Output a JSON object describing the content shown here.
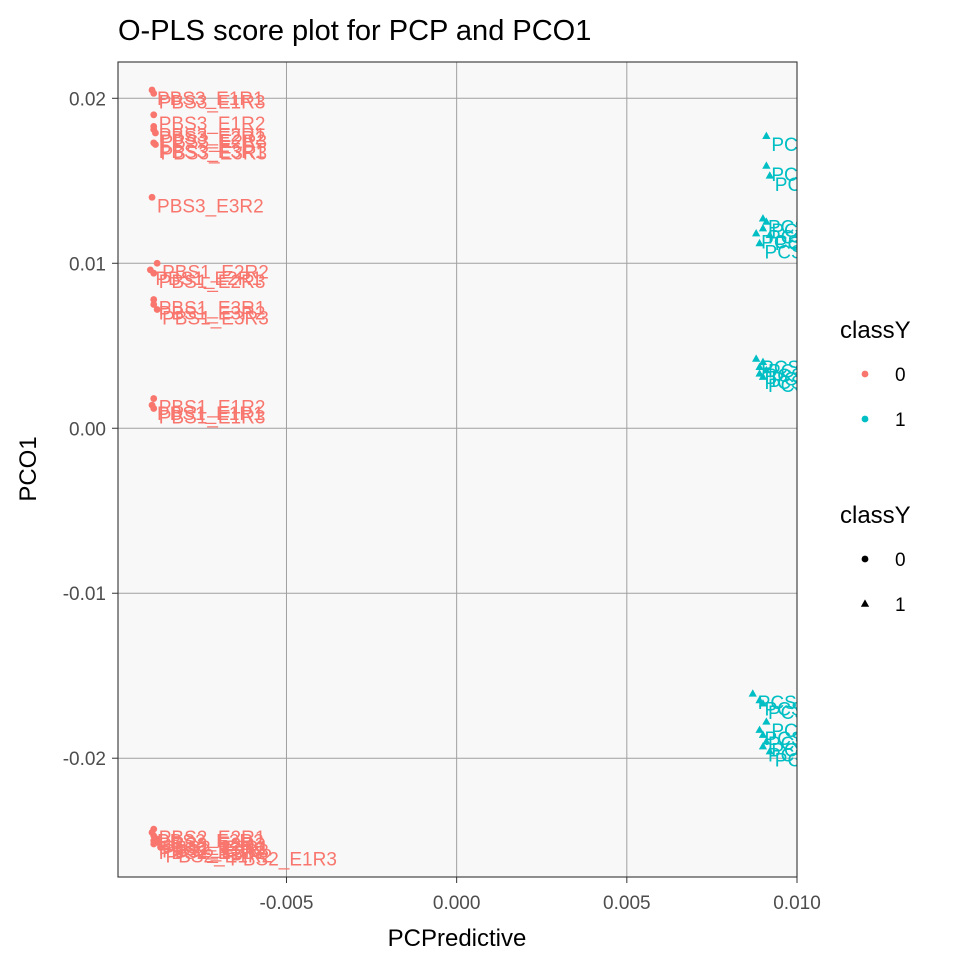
{
  "chart_data": {
    "type": "scatter",
    "title": "O-PLS score plot for PCP and PCO1",
    "xlabel": "PCPredictive",
    "ylabel": "PCO1",
    "xlim": [
      -0.00995,
      0.01
    ],
    "ylim": [
      -0.0272,
      0.0222
    ],
    "x_ticks": [
      -0.005,
      0.0,
      0.005,
      0.01
    ],
    "x_tick_labels": [
      "-0.005",
      "0.000",
      "0.005",
      "0.010"
    ],
    "y_ticks": [
      -0.02,
      -0.01,
      0.0,
      0.01,
      0.02
    ],
    "y_tick_labels": [
      "-0.02",
      "-0.01",
      "0.00",
      "0.01",
      "0.02"
    ],
    "grid": true,
    "panel_background": "#f8f8f8",
    "legend_position": "right",
    "legends": [
      {
        "title": "classY",
        "kind": "color",
        "entries": [
          {
            "label": "0",
            "color": "#F8766D"
          },
          {
            "label": "1",
            "color": "#00BFC4"
          }
        ]
      },
      {
        "title": "classY",
        "kind": "shape",
        "entries": [
          {
            "label": "0",
            "shape": "circle"
          },
          {
            "label": "1",
            "shape": "triangle"
          }
        ]
      }
    ],
    "series": [
      {
        "class": "0",
        "color": "#F8766D",
        "shape": "circle",
        "points": [
          {
            "x": -0.00895,
            "y": 0.0205,
            "label": "PBS3_E1R1"
          },
          {
            "x": -0.0089,
            "y": 0.0203,
            "label": "PBS3_E1R3"
          },
          {
            "x": -0.0089,
            "y": 0.019,
            "label": "PBS3_E1R2"
          },
          {
            "x": -0.0089,
            "y": 0.0183,
            "label": "PBS3_E2R1"
          },
          {
            "x": -0.0089,
            "y": 0.0181,
            "label": "PBS3_E2R2"
          },
          {
            "x": -0.00885,
            "y": 0.0179,
            "label": "PBS3_E2R3"
          },
          {
            "x": -0.0089,
            "y": 0.0173,
            "label": "PBS3_E3R1"
          },
          {
            "x": -0.00885,
            "y": 0.0172,
            "label": "PBS3_E3R3"
          },
          {
            "x": -0.00895,
            "y": 0.014,
            "label": "PBS3_E3R2"
          },
          {
            "x": -0.009,
            "y": 0.0096,
            "label": "PBS1_E2R1"
          },
          {
            "x": -0.0088,
            "y": 0.01,
            "label": "PBS1_E2R2"
          },
          {
            "x": -0.0089,
            "y": 0.0094,
            "label": "PBS1_E2R3"
          },
          {
            "x": -0.0089,
            "y": 0.0078,
            "label": "PBS1_E3R1"
          },
          {
            "x": -0.0089,
            "y": 0.0075,
            "label": "PBS1_E3R2"
          },
          {
            "x": -0.0088,
            "y": 0.0072,
            "label": "PBS1_E3R3"
          },
          {
            "x": -0.0089,
            "y": 0.0018,
            "label": "PBS1_E1R2"
          },
          {
            "x": -0.00895,
            "y": 0.0014,
            "label": "PBS1_E1R1"
          },
          {
            "x": -0.0089,
            "y": 0.0012,
            "label": "PBS1_E1R3"
          },
          {
            "x": -0.0089,
            "y": -0.0243,
            "label": "PBS2_E2R1"
          },
          {
            "x": -0.00895,
            "y": -0.0245,
            "label": "PBS2_E2R2"
          },
          {
            "x": -0.0089,
            "y": -0.0247,
            "label": "PBS2_E2R3"
          },
          {
            "x": -0.0088,
            "y": -0.0249,
            "label": "PBS2_E3R1"
          },
          {
            "x": -0.0089,
            "y": -0.025,
            "label": "PBS2_E3R2"
          },
          {
            "x": -0.0088,
            "y": -0.0251,
            "label": "PBS2_E3R3"
          },
          {
            "x": -0.0089,
            "y": -0.0252,
            "label": "PBS2_E1R1"
          },
          {
            "x": -0.0087,
            "y": -0.0254,
            "label": "PBS2_E1R2"
          },
          {
            "x": -0.0068,
            "y": -0.0256,
            "label": "PBS2_E1R3"
          }
        ]
      },
      {
        "class": "1",
        "color": "#00BFC4",
        "shape": "triangle",
        "points": [
          {
            "x": 0.0091,
            "y": 0.0177,
            "label": "PCS"
          },
          {
            "x": 0.0091,
            "y": 0.0159,
            "label": "PCS"
          },
          {
            "x": 0.0092,
            "y": 0.0153,
            "label": "PCS"
          },
          {
            "x": 0.009,
            "y": 0.0127,
            "label": "PCS"
          },
          {
            "x": 0.0091,
            "y": 0.0125,
            "label": "PCS"
          },
          {
            "x": 0.009,
            "y": 0.0121,
            "label": "PCS"
          },
          {
            "x": 0.0088,
            "y": 0.0118,
            "label": "PCS"
          },
          {
            "x": 0.0092,
            "y": 0.0117,
            "label": "PCS"
          },
          {
            "x": 0.0089,
            "y": 0.0112,
            "label": "PCS"
          },
          {
            "x": 0.0088,
            "y": 0.0042,
            "label": "PCS"
          },
          {
            "x": 0.009,
            "y": 0.004,
            "label": "PCS"
          },
          {
            "x": 0.0089,
            "y": 0.0037,
            "label": "PCS"
          },
          {
            "x": 0.0091,
            "y": 0.0035,
            "label": "PCS"
          },
          {
            "x": 0.0089,
            "y": 0.0033,
            "label": "PCS"
          },
          {
            "x": 0.009,
            "y": 0.0031,
            "label": "PCS"
          },
          {
            "x": 0.0087,
            "y": -0.0161,
            "label": "PCS"
          },
          {
            "x": 0.0089,
            "y": -0.0165,
            "label": "PCS"
          },
          {
            "x": 0.009,
            "y": -0.0167,
            "label": "PCS"
          },
          {
            "x": 0.0091,
            "y": -0.0178,
            "label": "PCS"
          },
          {
            "x": 0.0089,
            "y": -0.0183,
            "label": "PCS"
          },
          {
            "x": 0.009,
            "y": -0.0186,
            "label": "PCS"
          },
          {
            "x": 0.0091,
            "y": -0.019,
            "label": "PCS"
          },
          {
            "x": 0.009,
            "y": -0.0193,
            "label": "PCS"
          },
          {
            "x": 0.0092,
            "y": -0.0196,
            "label": "PCS"
          }
        ]
      }
    ]
  }
}
